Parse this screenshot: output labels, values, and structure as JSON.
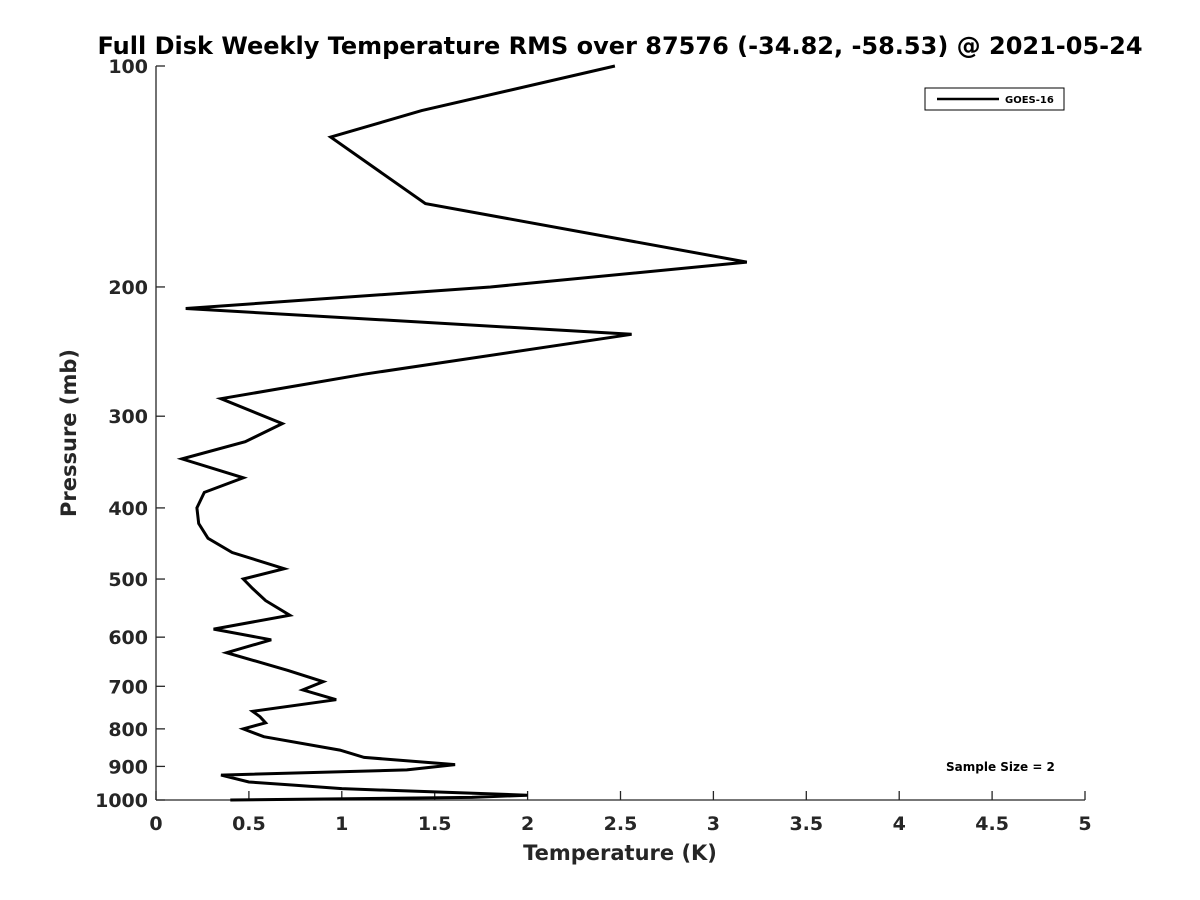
{
  "chart_data": {
    "type": "line",
    "title": "Full Disk Weekly Temperature RMS over 87576 (-34.82, -58.53) @ 2021-05-24",
    "xlabel": "Temperature (K)",
    "ylabel": "Pressure (mb)",
    "xlim": [
      0,
      5
    ],
    "ylim": [
      100,
      1000
    ],
    "y_scale": "log",
    "y_reversed": true,
    "xticks": [
      0,
      0.5,
      1,
      1.5,
      2,
      2.5,
      3,
      3.5,
      4,
      4.5,
      5
    ],
    "xtick_labels": [
      "0",
      "0.5",
      "1",
      "1.5",
      "2",
      "2.5",
      "3",
      "3.5",
      "4",
      "4.5",
      "5"
    ],
    "yticks": [
      100,
      200,
      300,
      400,
      500,
      600,
      700,
      800,
      900,
      1000
    ],
    "ytick_labels": [
      "100",
      "200",
      "300",
      "400",
      "500",
      "600",
      "700",
      "800",
      "900",
      "1000"
    ],
    "grid": false,
    "legend_position": "top-right",
    "annotation": "Sample Size = 2",
    "series": [
      {
        "name": "GOES-16",
        "color": "#000000",
        "x": [
          2.47,
          1.43,
          0.94,
          1.45,
          3.18,
          1.8,
          0.16,
          2.56,
          1.12,
          0.35,
          0.68,
          0.48,
          0.14,
          0.47,
          0.26,
          0.22,
          0.23,
          0.28,
          0.41,
          0.69,
          0.47,
          0.52,
          0.59,
          0.72,
          0.31,
          0.62,
          0.38,
          0.71,
          0.9,
          0.79,
          0.97,
          0.52,
          0.56,
          0.59,
          0.47,
          0.58,
          0.99,
          1.12,
          1.61,
          1.35,
          0.35,
          0.5,
          0.75,
          1.0,
          1.25,
          1.5,
          2.0,
          1.7,
          0.4
        ],
        "y": [
          100,
          115,
          125,
          154,
          185,
          200,
          214,
          232,
          263,
          284,
          307,
          325,
          343,
          364,
          381,
          400,
          420,
          440,
          460,
          484,
          500,
          515,
          535,
          560,
          585,
          605,
          630,
          666,
          690,
          708,
          730,
          757,
          770,
          785,
          800,
          820,
          855,
          875,
          895,
          910,
          925,
          945,
          955,
          965,
          970,
          975,
          985,
          992,
          1000
        ]
      }
    ]
  }
}
